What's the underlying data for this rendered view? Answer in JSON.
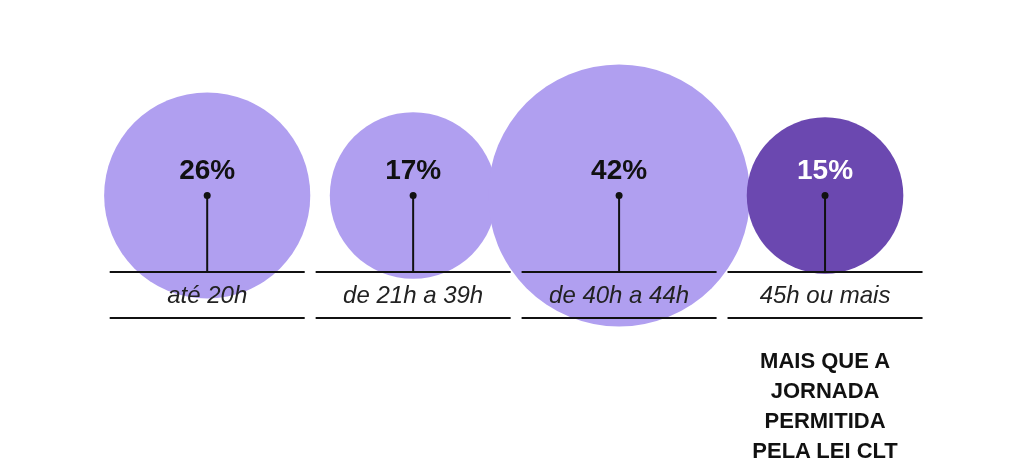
{
  "chart_data": {
    "type": "other",
    "categories": [
      "até 20h",
      "de 21h a 39h",
      "de 40h a 44h",
      "45h ou mais"
    ],
    "values": [
      26,
      17,
      42,
      15
    ],
    "value_labels": [
      "26%",
      "17%",
      "42%",
      "15%"
    ],
    "colors": [
      "#b09ff0",
      "#b09ff0",
      "#b09ff0",
      "#6b48b0"
    ],
    "annotations": [
      {
        "text": "MAIS QUE A JORNADA PERMITIDA PELA LEI CLT",
        "x": "45h ou mais"
      }
    ]
  }
}
